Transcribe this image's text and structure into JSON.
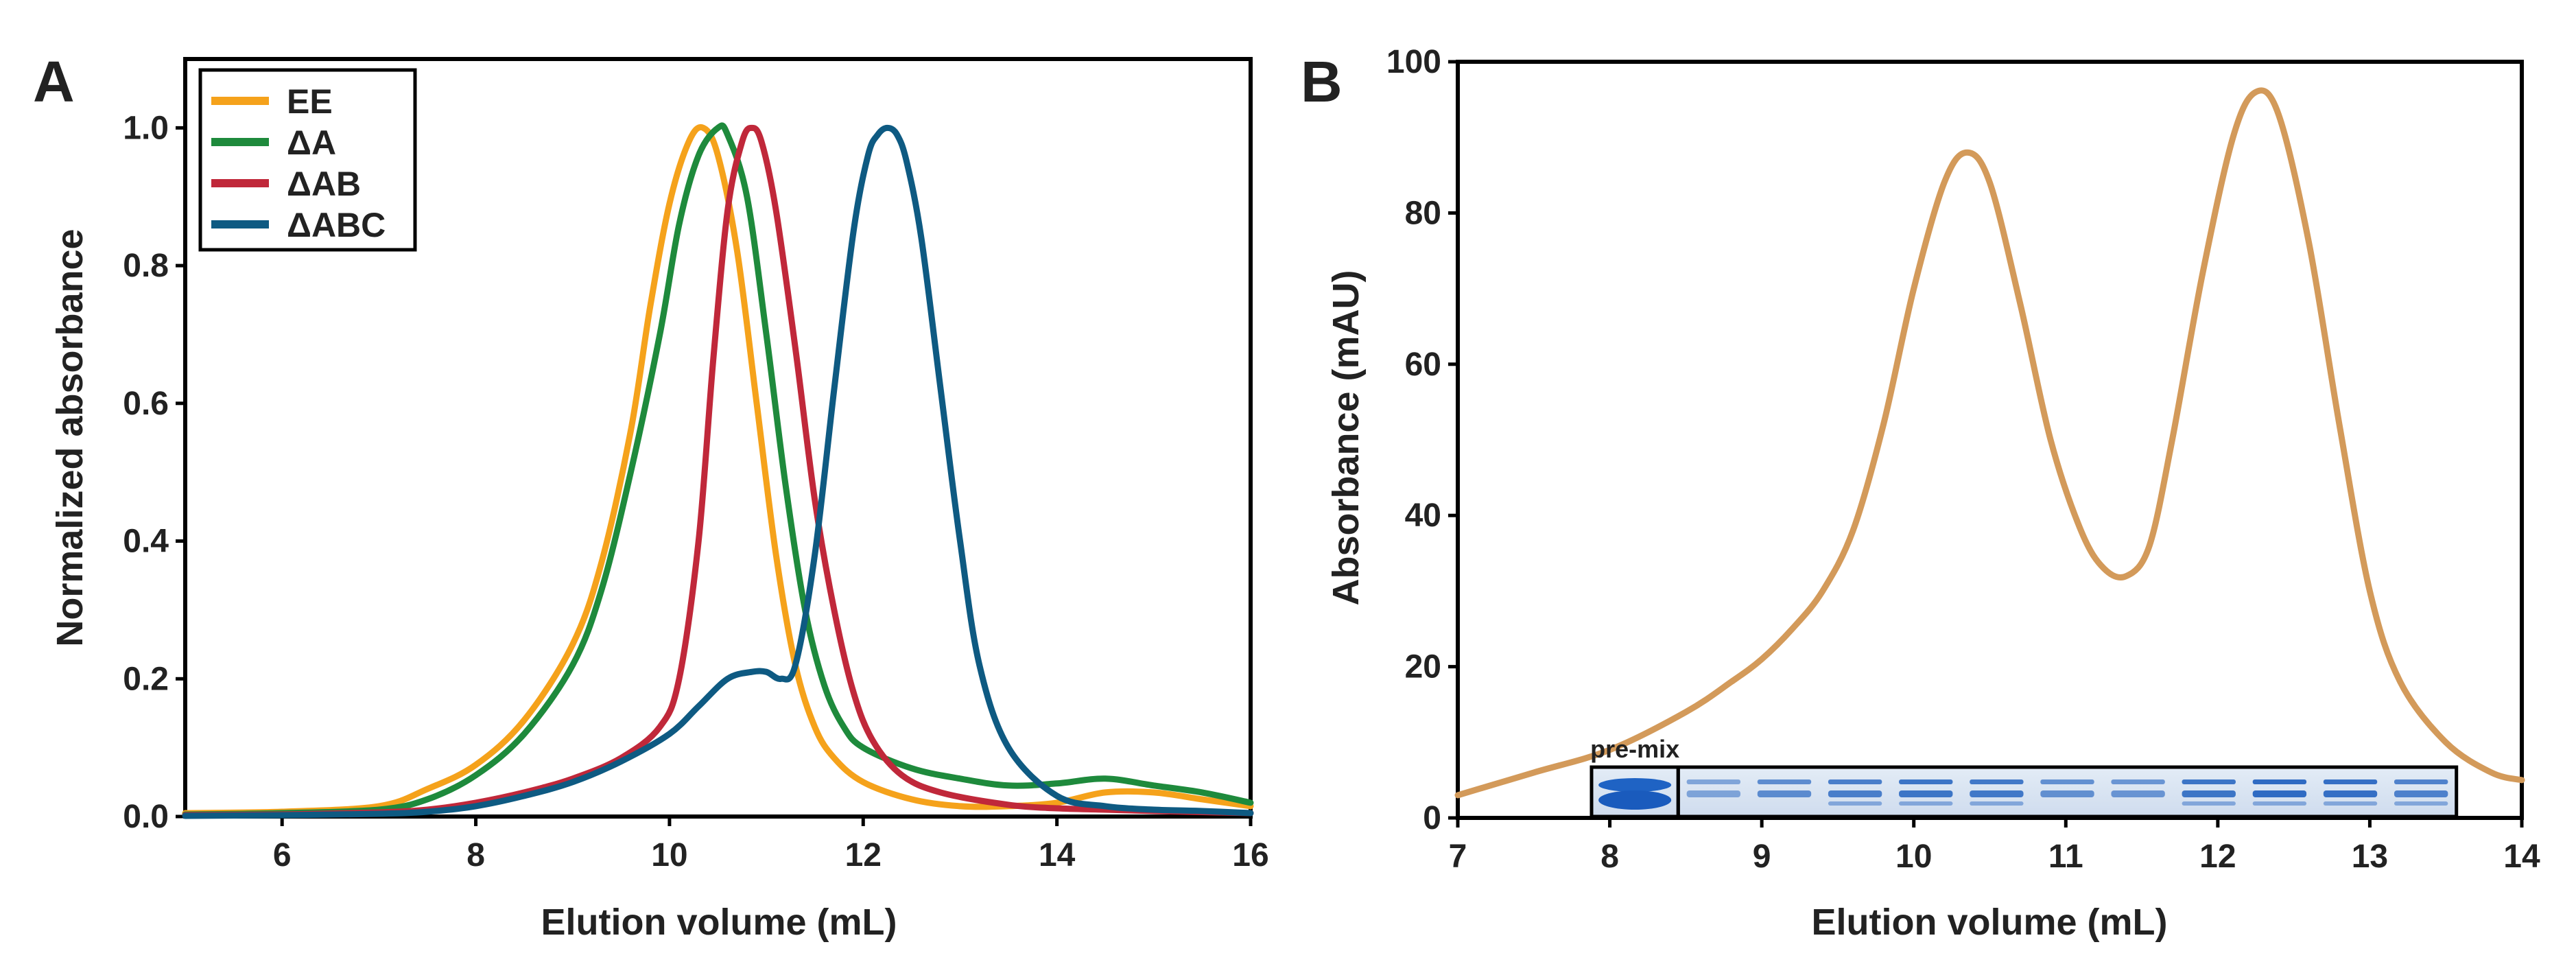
{
  "figure": {
    "panel_a_letter": "A",
    "panel_b_letter": "B"
  },
  "chart_data": [
    {
      "panel": "A",
      "type": "line",
      "title": "",
      "xlabel": "Elution volume (mL)",
      "ylabel": "Normalized absorbance",
      "xlim": [
        5,
        16
      ],
      "ylim": [
        0,
        1.1
      ],
      "xticks": [
        6,
        8,
        10,
        12,
        14,
        16
      ],
      "xtick_labels": [
        "6",
        "8",
        "10",
        "12",
        "14",
        "16"
      ],
      "yticks": [
        0,
        0.2,
        0.4,
        0.6,
        0.8,
        1.0
      ],
      "ytick_labels": [
        "0.0",
        "0.2",
        "0.4",
        "0.6",
        "0.8",
        "1.0"
      ],
      "grid": false,
      "legend": "top-left",
      "series": [
        {
          "name": "EE",
          "color": "#f5a21b",
          "x": [
            5,
            6,
            7,
            7.5,
            8,
            8.5,
            9,
            9.3,
            9.6,
            9.8,
            10,
            10.2,
            10.35,
            10.5,
            10.7,
            10.9,
            11.1,
            11.3,
            11.5,
            11.7,
            12,
            12.5,
            13,
            13.5,
            14,
            14.5,
            15,
            15.5,
            16
          ],
          "y": [
            0.005,
            0.007,
            0.015,
            0.04,
            0.075,
            0.14,
            0.25,
            0.37,
            0.56,
            0.74,
            0.89,
            0.98,
            1.0,
            0.96,
            0.82,
            0.6,
            0.38,
            0.22,
            0.13,
            0.085,
            0.05,
            0.025,
            0.015,
            0.015,
            0.02,
            0.035,
            0.035,
            0.025,
            0.015
          ]
        },
        {
          "name": "ΔA",
          "color": "#1e8a3c",
          "x": [
            5,
            6,
            7,
            7.5,
            8,
            8.5,
            9,
            9.3,
            9.6,
            9.9,
            10.1,
            10.3,
            10.5,
            10.6,
            10.8,
            11,
            11.2,
            11.4,
            11.6,
            11.8,
            12,
            12.5,
            13,
            13.5,
            14,
            14.5,
            15,
            15.5,
            16
          ],
          "y": [
            0.003,
            0.005,
            0.01,
            0.025,
            0.06,
            0.12,
            0.22,
            0.33,
            0.5,
            0.7,
            0.86,
            0.96,
            1.0,
            0.99,
            0.9,
            0.7,
            0.48,
            0.3,
            0.19,
            0.13,
            0.1,
            0.07,
            0.055,
            0.045,
            0.048,
            0.055,
            0.045,
            0.035,
            0.02
          ]
        },
        {
          "name": "ΔAB",
          "color": "#c0283a",
          "x": [
            5,
            6,
            7,
            7.5,
            8,
            8.5,
            9,
            9.5,
            9.9,
            10.1,
            10.3,
            10.45,
            10.6,
            10.75,
            10.85,
            10.95,
            11.1,
            11.3,
            11.5,
            11.7,
            11.9,
            12.1,
            12.4,
            12.8,
            13.5,
            14,
            14.5,
            15,
            16
          ],
          "y": [
            0.002,
            0.003,
            0.006,
            0.01,
            0.02,
            0.035,
            0.055,
            0.085,
            0.13,
            0.2,
            0.4,
            0.66,
            0.88,
            0.98,
            1.0,
            0.98,
            0.88,
            0.68,
            0.46,
            0.3,
            0.18,
            0.11,
            0.06,
            0.035,
            0.017,
            0.012,
            0.01,
            0.008,
            0.005
          ]
        },
        {
          "name": "ΔABC",
          "color": "#0e5a82",
          "x": [
            5,
            6,
            7,
            7.5,
            8,
            8.5,
            9,
            9.5,
            10,
            10.3,
            10.6,
            10.85,
            11,
            11.15,
            11.3,
            11.5,
            11.7,
            11.9,
            12.05,
            12.15,
            12.25,
            12.35,
            12.45,
            12.6,
            12.8,
            13,
            13.2,
            13.5,
            14,
            14.5,
            15,
            15.5,
            16
          ],
          "y": [
            0.001,
            0.002,
            0.004,
            0.007,
            0.015,
            0.03,
            0.05,
            0.08,
            0.12,
            0.16,
            0.2,
            0.21,
            0.21,
            0.2,
            0.22,
            0.38,
            0.62,
            0.85,
            0.96,
            0.99,
            1.0,
            0.99,
            0.95,
            0.84,
            0.62,
            0.4,
            0.22,
            0.1,
            0.03,
            0.015,
            0.01,
            0.008,
            0.005
          ]
        }
      ]
    },
    {
      "panel": "B",
      "type": "line",
      "title": "",
      "xlabel": "Elution volume (mL)",
      "ylabel": "Absorbance (mAU)",
      "xlim": [
        7,
        14
      ],
      "ylim": [
        0,
        100
      ],
      "xticks": [
        7,
        8,
        9,
        10,
        11,
        12,
        13,
        14
      ],
      "xtick_labels": [
        "7",
        "8",
        "9",
        "10",
        "11",
        "12",
        "13",
        "14"
      ],
      "yticks": [
        0,
        20,
        40,
        60,
        80,
        100
      ],
      "ytick_labels": [
        "0",
        "20",
        "40",
        "60",
        "80",
        "100"
      ],
      "grid": false,
      "legend": "none",
      "series": [
        {
          "name": "Absorbance",
          "color": "#d39a5a",
          "x": [
            7,
            7.5,
            8,
            8.5,
            8.8,
            9,
            9.2,
            9.4,
            9.6,
            9.8,
            10,
            10.2,
            10.35,
            10.5,
            10.7,
            10.9,
            11.1,
            11.25,
            11.4,
            11.55,
            11.7,
            11.9,
            12.1,
            12.25,
            12.4,
            12.6,
            12.8,
            13,
            13.2,
            13.5,
            13.8,
            14
          ],
          "y": [
            3,
            6,
            9,
            14,
            18,
            21,
            25,
            30,
            38,
            52,
            70,
            84,
            88,
            84,
            68,
            50,
            38,
            33,
            32,
            36,
            50,
            72,
            90,
            96,
            93,
            76,
            52,
            30,
            18,
            10,
            6,
            5
          ]
        }
      ],
      "gel_inset": {
        "label": "pre-mix",
        "premix_lane_range_mL": [
          7.88,
          8.45
        ],
        "fractions_range_mL": [
          8.45,
          13.57
        ],
        "lane_intensities": [
          0.35,
          0.6,
          0.75,
          0.85,
          0.8,
          0.55,
          0.5,
          0.85,
          0.95,
          0.9,
          0.7
        ]
      }
    }
  ]
}
